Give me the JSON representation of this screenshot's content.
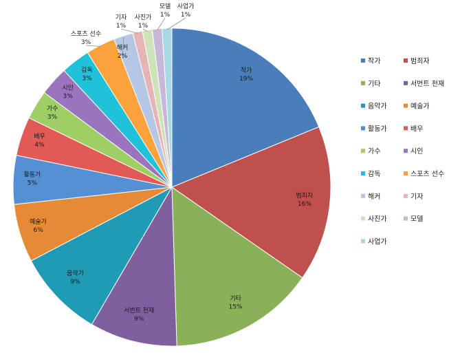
{
  "chart_data": {
    "type": "pie",
    "title": "",
    "legend_position": "right",
    "slices": [
      {
        "label": "작가",
        "percent_label": "19%",
        "value": 19,
        "color": "#4a7ebb"
      },
      {
        "label": "범죄자",
        "percent_label": "16%",
        "value": 16,
        "color": "#c0504d"
      },
      {
        "label": "기타",
        "percent_label": "15%",
        "value": 15,
        "color": "#8bb158"
      },
      {
        "label": "서번트 천재",
        "percent_label": "9%",
        "value": 9,
        "color": "#7f5f9d"
      },
      {
        "label": "음악가",
        "percent_label": "9%",
        "value": 9,
        "color": "#1f9bb5"
      },
      {
        "label": "예술가",
        "percent_label": "6%",
        "value": 6,
        "color": "#e68a35"
      },
      {
        "label": "활동가",
        "percent_label": "5%",
        "value": 5,
        "color": "#5590d4"
      },
      {
        "label": "배우",
        "percent_label": "4%",
        "value": 4,
        "color": "#e25a55"
      },
      {
        "label": "가수",
        "percent_label": "3%",
        "value": 3,
        "color": "#9fce64"
      },
      {
        "label": "시인",
        "percent_label": "3%",
        "value": 3,
        "color": "#9a75bd"
      },
      {
        "label": "감독",
        "percent_label": "3%",
        "value": 3,
        "color": "#21c1d9"
      },
      {
        "label": "스포츠 선수",
        "percent_label": "3%",
        "value": 3,
        "color": "#fba23d"
      },
      {
        "label": "해커",
        "percent_label": "2%",
        "value": 2,
        "color": "#b5c7e3"
      },
      {
        "label": "기자",
        "percent_label": "1%",
        "value": 1,
        "color": "#e6b4b4"
      },
      {
        "label": "사진가",
        "percent_label": "1%",
        "value": 1,
        "color": "#cfe3b8"
      },
      {
        "label": "모델",
        "percent_label": "1%",
        "value": 1,
        "color": "#c7b8d9"
      },
      {
        "label": "사업가",
        "percent_label": "1%",
        "value": 1,
        "color": "#a9d8e6"
      }
    ]
  }
}
